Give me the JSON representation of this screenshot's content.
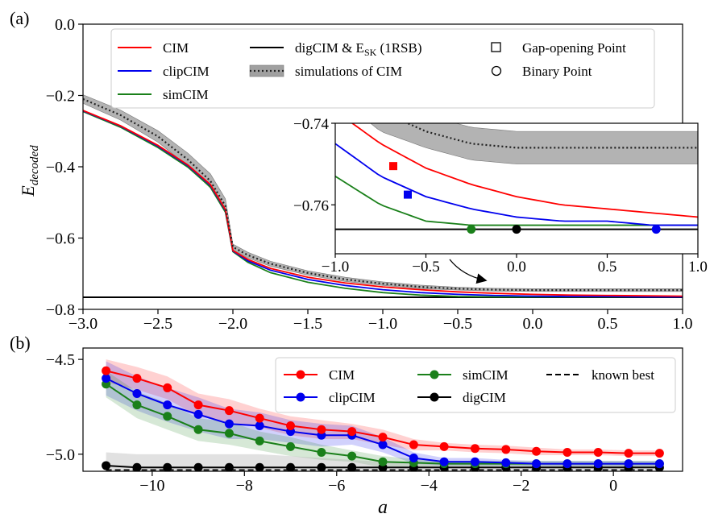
{
  "panel_labels": {
    "a": "(a)",
    "b": "(b)"
  },
  "chart_data": [
    {
      "id": "a",
      "type": "line",
      "ylabel": "E",
      "ylabel_sub": "decoded",
      "xlim": [
        -3.0,
        1.0
      ],
      "ylim": [
        -0.8,
        0.0
      ],
      "xticks": [
        -3.0,
        -2.5,
        -2.0,
        -1.5,
        -1.0,
        -0.5,
        0.0,
        0.5,
        1.0
      ],
      "xtick_labels": [
        "−3.0",
        "−2.5",
        "−2.0",
        "−1.5",
        "−1.0",
        "−0.5",
        "0.0",
        "0.5",
        "1.0"
      ],
      "yticks": [
        0.0,
        -0.2,
        -0.4,
        -0.6,
        -0.8
      ],
      "ytick_labels": [
        "0.0",
        "−0.2",
        "−0.4",
        "−0.6",
        "−0.8"
      ],
      "legend": {
        "position": "top",
        "cim": "CIM",
        "clipcim": "clipCIM",
        "simcim": "simCIM",
        "digcim_main": "digCIM & E",
        "digcim_sub": "SK",
        "digcim_tail": " (1RSB)",
        "simulations": "simulations of CIM",
        "gap": "Gap-opening Point",
        "binary": "Binary Point"
      },
      "colors": {
        "cim": "#ff0000",
        "clipcim": "#0000ee",
        "simcim": "#1a801a",
        "digcim": "#000000",
        "band": "#a0a0a0"
      },
      "series": [
        {
          "key": "cim",
          "x": [
            -3.0,
            -2.75,
            -2.5,
            -2.3,
            -2.15,
            -2.05,
            -2.0,
            -1.9,
            -1.75,
            -1.5,
            -1.25,
            -1.0,
            -0.75,
            -0.5,
            -0.25,
            0.0,
            0.25,
            0.5,
            0.75,
            1.0
          ],
          "y": [
            -0.242,
            -0.285,
            -0.34,
            -0.395,
            -0.45,
            -0.52,
            -0.635,
            -0.66,
            -0.685,
            -0.71,
            -0.726,
            -0.737,
            -0.745,
            -0.751,
            -0.755,
            -0.758,
            -0.76,
            -0.761,
            -0.762,
            -0.763
          ]
        },
        {
          "key": "clipcim",
          "x": [
            -3.0,
            -2.75,
            -2.5,
            -2.3,
            -2.15,
            -2.05,
            -2.0,
            -1.9,
            -1.75,
            -1.5,
            -1.25,
            -1.0,
            -0.75,
            -0.5,
            -0.25,
            0.0,
            0.25,
            0.5,
            0.75,
            1.0
          ],
          "y": [
            -0.243,
            -0.286,
            -0.342,
            -0.397,
            -0.452,
            -0.522,
            -0.636,
            -0.664,
            -0.69,
            -0.716,
            -0.733,
            -0.745,
            -0.753,
            -0.758,
            -0.761,
            -0.763,
            -0.764,
            -0.764,
            -0.765,
            -0.765
          ]
        },
        {
          "key": "simcim",
          "x": [
            -3.0,
            -2.75,
            -2.5,
            -2.3,
            -2.15,
            -2.05,
            -2.0,
            -1.9,
            -1.75,
            -1.5,
            -1.25,
            -1.0,
            -0.75,
            -0.5,
            -0.25,
            0.0,
            0.25,
            0.5,
            0.75,
            1.0
          ],
          "y": [
            -0.245,
            -0.289,
            -0.346,
            -0.401,
            -0.457,
            -0.527,
            -0.638,
            -0.668,
            -0.697,
            -0.724,
            -0.741,
            -0.753,
            -0.76,
            -0.764,
            -0.765,
            -0.765,
            -0.765,
            -0.765,
            -0.765,
            -0.765
          ]
        },
        {
          "key": "simulations",
          "x": [
            -3.0,
            -2.75,
            -2.5,
            -2.3,
            -2.15,
            -2.05,
            -2.0,
            -1.9,
            -1.75,
            -1.5,
            -1.25,
            -1.0,
            -0.75,
            -0.5,
            -0.25,
            0.0,
            0.25,
            0.5,
            0.75,
            1.0
          ],
          "y": [
            -0.21,
            -0.255,
            -0.315,
            -0.38,
            -0.44,
            -0.51,
            -0.625,
            -0.648,
            -0.672,
            -0.698,
            -0.716,
            -0.728,
            -0.737,
            -0.742,
            -0.745,
            -0.746,
            -0.746,
            -0.746,
            -0.746,
            -0.746
          ],
          "band": [
            0.012,
            0.014,
            0.016,
            0.018,
            0.02,
            0.02,
            0.008,
            0.008,
            0.007,
            0.006,
            0.006,
            0.005,
            0.005,
            0.004,
            0.004,
            0.004,
            0.004,
            0.004,
            0.004,
            0.004
          ]
        },
        {
          "key": "digcim",
          "x": [
            -3.0,
            1.0
          ],
          "y": [
            -0.766,
            -0.766
          ]
        }
      ],
      "inset": {
        "xlim": [
          -1.0,
          1.0
        ],
        "ylim": [
          -0.772,
          -0.74
        ],
        "xticks": [
          -1.0,
          -0.5,
          0.0,
          0.5,
          1.0
        ],
        "xtick_labels": [
          "−1.0",
          "−0.5",
          "0.0",
          "0.5",
          "1.0"
        ],
        "yticks": [
          -0.74,
          -0.76
        ],
        "ytick_labels": [
          "−0.74",
          "−0.76"
        ],
        "gap_points": [
          {
            "series": "cim",
            "x": -0.68,
            "y": -0.7505
          },
          {
            "series": "clipcim",
            "x": -0.6,
            "y": -0.7575
          }
        ],
        "binary_points": [
          {
            "series": "simcim",
            "x": -0.25,
            "y": -0.766
          },
          {
            "series": "digcim",
            "x": 0.0,
            "y": -0.766
          },
          {
            "series": "clipcim",
            "x": 0.77,
            "y": -0.766
          }
        ]
      }
    },
    {
      "id": "b",
      "type": "line",
      "xlabel": "a",
      "xlim": [
        -11.5,
        1.5
      ],
      "ylim": [
        -5.09,
        -4.44
      ],
      "xticks": [
        -10,
        -8,
        -6,
        -4,
        -2,
        0
      ],
      "xtick_labels": [
        "−10",
        "−8",
        "−6",
        "−4",
        "−2",
        "0"
      ],
      "yticks": [
        -4.5,
        -5.0
      ],
      "ytick_labels": [
        "−4.5",
        "−5.0"
      ],
      "legend": {
        "position": "top-right",
        "cim": "CIM",
        "clipcim": "clipCIM",
        "simcim": "simCIM",
        "digcim": "digCIM",
        "known_best": "known best"
      },
      "x": [
        -11,
        -10.33,
        -9.67,
        -9,
        -8.33,
        -7.67,
        -7,
        -6.33,
        -5.67,
        -5,
        -4.33,
        -3.67,
        -3,
        -2.33,
        -1.67,
        -1,
        -0.33,
        0.33,
        1
      ],
      "series": [
        {
          "key": "cim",
          "color": "#ff0000",
          "values": [
            -4.56,
            -4.6,
            -4.65,
            -4.74,
            -4.77,
            -4.81,
            -4.85,
            -4.87,
            -4.88,
            -4.91,
            -4.95,
            -4.96,
            -4.97,
            -4.975,
            -4.985,
            -4.99,
            -4.99,
            -4.995,
            -4.995
          ],
          "band": [
            0.06,
            0.06,
            0.06,
            0.06,
            0.06,
            0.05,
            0.05,
            0.05,
            0.04,
            0.04,
            0.03,
            0.02,
            0.02,
            0.02,
            0.02,
            0.015,
            0.015,
            0.015,
            0.015
          ]
        },
        {
          "key": "clipcim",
          "color": "#0000ee",
          "values": [
            -4.6,
            -4.68,
            -4.74,
            -4.79,
            -4.84,
            -4.85,
            -4.88,
            -4.9,
            -4.9,
            -4.95,
            -5.02,
            -5.04,
            -5.04,
            -5.045,
            -5.05,
            -5.05,
            -5.05,
            -5.05,
            -5.05
          ],
          "band": [
            0.09,
            0.09,
            0.09,
            0.09,
            0.08,
            0.07,
            0.06,
            0.06,
            0.05,
            0.04,
            0.03,
            0.02,
            0.02,
            0.015,
            0.015,
            0.015,
            0.015,
            0.015,
            0.015
          ]
        },
        {
          "key": "simcim",
          "color": "#1a801a",
          "values": [
            -4.63,
            -4.74,
            -4.8,
            -4.87,
            -4.89,
            -4.93,
            -4.96,
            -4.99,
            -5.01,
            -5.04,
            -5.045,
            -5.05,
            -5.05,
            -5.05,
            -5.05,
            -5.05,
            -5.05,
            -5.05,
            -5.05
          ],
          "band": [
            0.07,
            0.07,
            0.07,
            0.06,
            0.06,
            0.05,
            0.05,
            0.04,
            0.03,
            0.03,
            0.02,
            0.015,
            0.015,
            0.015,
            0.015,
            0.015,
            0.015,
            0.015,
            0.015
          ]
        },
        {
          "key": "digcim",
          "color": "#000000",
          "values": [
            -5.06,
            -5.07,
            -5.07,
            -5.07,
            -5.07,
            -5.07,
            -5.07,
            -5.07,
            -5.07,
            -5.07,
            -5.07,
            -5.07,
            -5.07,
            -5.07,
            -5.07,
            -5.07,
            -5.07,
            -5.07,
            -5.07
          ],
          "band": [
            0.07,
            0.07,
            0.07,
            0.07,
            0.07,
            0.07,
            0.06,
            0.05,
            0.04,
            0.03,
            0.02,
            0.02,
            0.015,
            0.015,
            0.015,
            0.015,
            0.015,
            0.015,
            0.015
          ]
        },
        {
          "key": "known_best",
          "color": "#000000",
          "style": "dashed",
          "x": [
            -11,
            1
          ],
          "values": [
            -5.083,
            -5.083
          ]
        }
      ]
    }
  ]
}
